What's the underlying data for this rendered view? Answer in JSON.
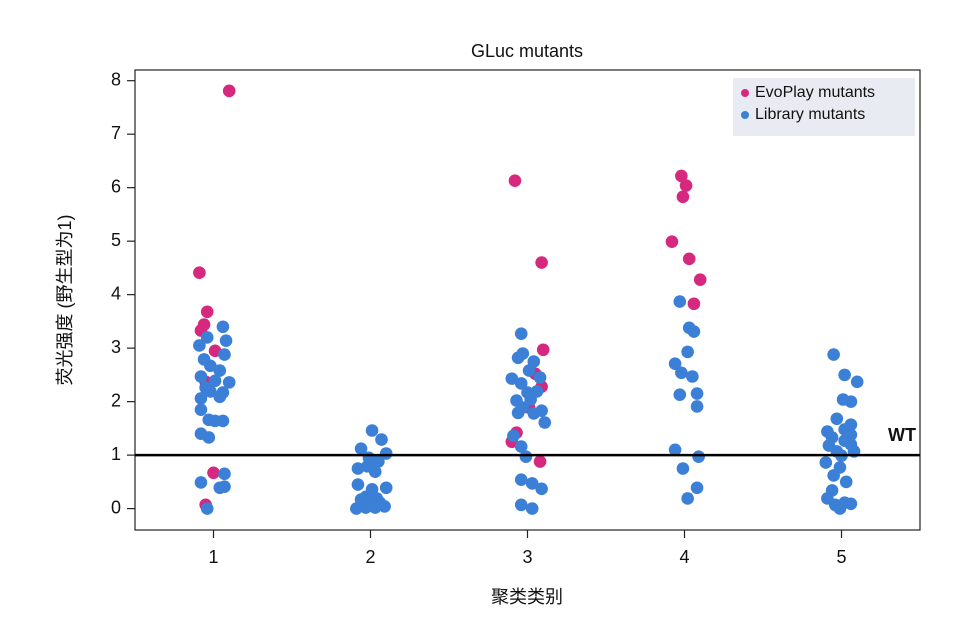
{
  "chart_data": {
    "type": "scatter",
    "title": "GLuc mutants",
    "x_label": "聚类类别",
    "y_label": "荧光强度 (野生型为1)",
    "xlim": [
      0.5,
      5.5
    ],
    "ylim": [
      -0.4,
      8.2
    ],
    "xticks": [
      1,
      2,
      3,
      4,
      5
    ],
    "yticks": [
      0,
      1,
      2,
      3,
      4,
      5,
      6,
      7,
      8
    ],
    "grid": false,
    "legend": "upper right",
    "reference_line": {
      "value": 1,
      "label": "WT"
    },
    "series": [
      {
        "name": "EvoPlay mutants",
        "color": "#d6287f",
        "x": [
          1.1,
          0.91,
          0.96,
          0.94,
          0.92,
          1.01,
          0.95,
          1.0,
          0.95,
          2.92,
          3.09,
          3.1,
          3.09,
          3.05,
          3.01,
          2.93,
          2.9,
          3.08,
          3.98,
          4.01,
          3.99,
          3.92,
          4.03,
          4.1,
          4.06
        ],
        "y": [
          7.81,
          4.41,
          3.68,
          3.44,
          3.33,
          2.95,
          2.37,
          0.67,
          0.07,
          6.13,
          4.6,
          2.97,
          2.28,
          2.52,
          1.89,
          1.42,
          1.25,
          0.88,
          6.22,
          6.04,
          5.83,
          4.99,
          4.67,
          4.28,
          3.83
        ]
      },
      {
        "name": "Library mutants",
        "color": "#3b80d6",
        "x": [
          1.06,
          0.91,
          0.96,
          1.08,
          1.07,
          0.94,
          0.98,
          1.04,
          0.92,
          1.01,
          1.1,
          0.95,
          1.06,
          0.92,
          1.04,
          0.92,
          0.97,
          1.01,
          1.06,
          0.92,
          0.97,
          1.07,
          1.04,
          1.07,
          0.92,
          0.96,
          0.98,
          2.01,
          2.07,
          1.94,
          2.1,
          1.99,
          2.05,
          1.98,
          1.92,
          2.03,
          2.1,
          1.92,
          2.01,
          1.97,
          2.04,
          1.94,
          2.0,
          2.06,
          1.91,
          1.97,
          2.03,
          2.09,
          1.95,
          2.96,
          2.97,
          2.94,
          3.04,
          3.01,
          2.9,
          3.08,
          2.96,
          3.0,
          3.06,
          2.93,
          3.02,
          2.97,
          3.09,
          2.94,
          3.04,
          3.11,
          2.91,
          2.96,
          2.99,
          2.96,
          3.03,
          3.09,
          2.96,
          3.03,
          3.97,
          4.03,
          4.06,
          4.02,
          3.94,
          3.98,
          4.05,
          3.97,
          4.08,
          4.08,
          3.94,
          3.99,
          4.09,
          4.08,
          4.02,
          4.95,
          5.02,
          5.1,
          5.01,
          5.06,
          4.97,
          4.91,
          5.06,
          5.02,
          5.06,
          4.94,
          5.02,
          4.92,
          5.06,
          4.97,
          5.08,
          5.0,
          4.9,
          4.99,
          4.95,
          5.03,
          4.94,
          4.91,
          5.02,
          5.06,
          4.96,
          4.99
        ],
        "y": [
          3.4,
          3.05,
          3.2,
          3.14,
          2.88,
          2.79,
          2.67,
          2.58,
          2.47,
          2.39,
          2.36,
          2.26,
          2.17,
          2.06,
          2.09,
          1.85,
          1.66,
          1.64,
          1.64,
          1.4,
          1.33,
          0.65,
          0.39,
          0.41,
          0.49,
          0.0,
          2.19,
          1.46,
          1.29,
          1.12,
          1.03,
          0.95,
          0.88,
          0.79,
          0.75,
          0.69,
          0.39,
          0.45,
          0.36,
          0.22,
          0.19,
          0.17,
          0.13,
          0.11,
          0.0,
          0.02,
          0.02,
          0.04,
          0.07,
          3.27,
          2.9,
          2.82,
          2.75,
          2.58,
          2.43,
          2.45,
          2.34,
          2.17,
          2.19,
          2.02,
          2.04,
          1.89,
          1.83,
          1.79,
          1.78,
          1.61,
          1.36,
          1.16,
          0.97,
          0.54,
          0.47,
          0.37,
          0.07,
          0.0,
          3.87,
          3.38,
          3.31,
          2.93,
          2.71,
          2.54,
          2.47,
          2.13,
          2.15,
          1.91,
          1.1,
          0.75,
          0.97,
          0.39,
          0.19,
          2.88,
          2.5,
          2.37,
          2.04,
          2.0,
          1.68,
          1.44,
          1.57,
          1.48,
          1.38,
          1.33,
          1.27,
          1.18,
          1.2,
          1.07,
          1.07,
          0.99,
          0.86,
          0.77,
          0.62,
          0.5,
          0.34,
          0.19,
          0.11,
          0.09,
          0.07,
          0.0
        ]
      }
    ]
  }
}
